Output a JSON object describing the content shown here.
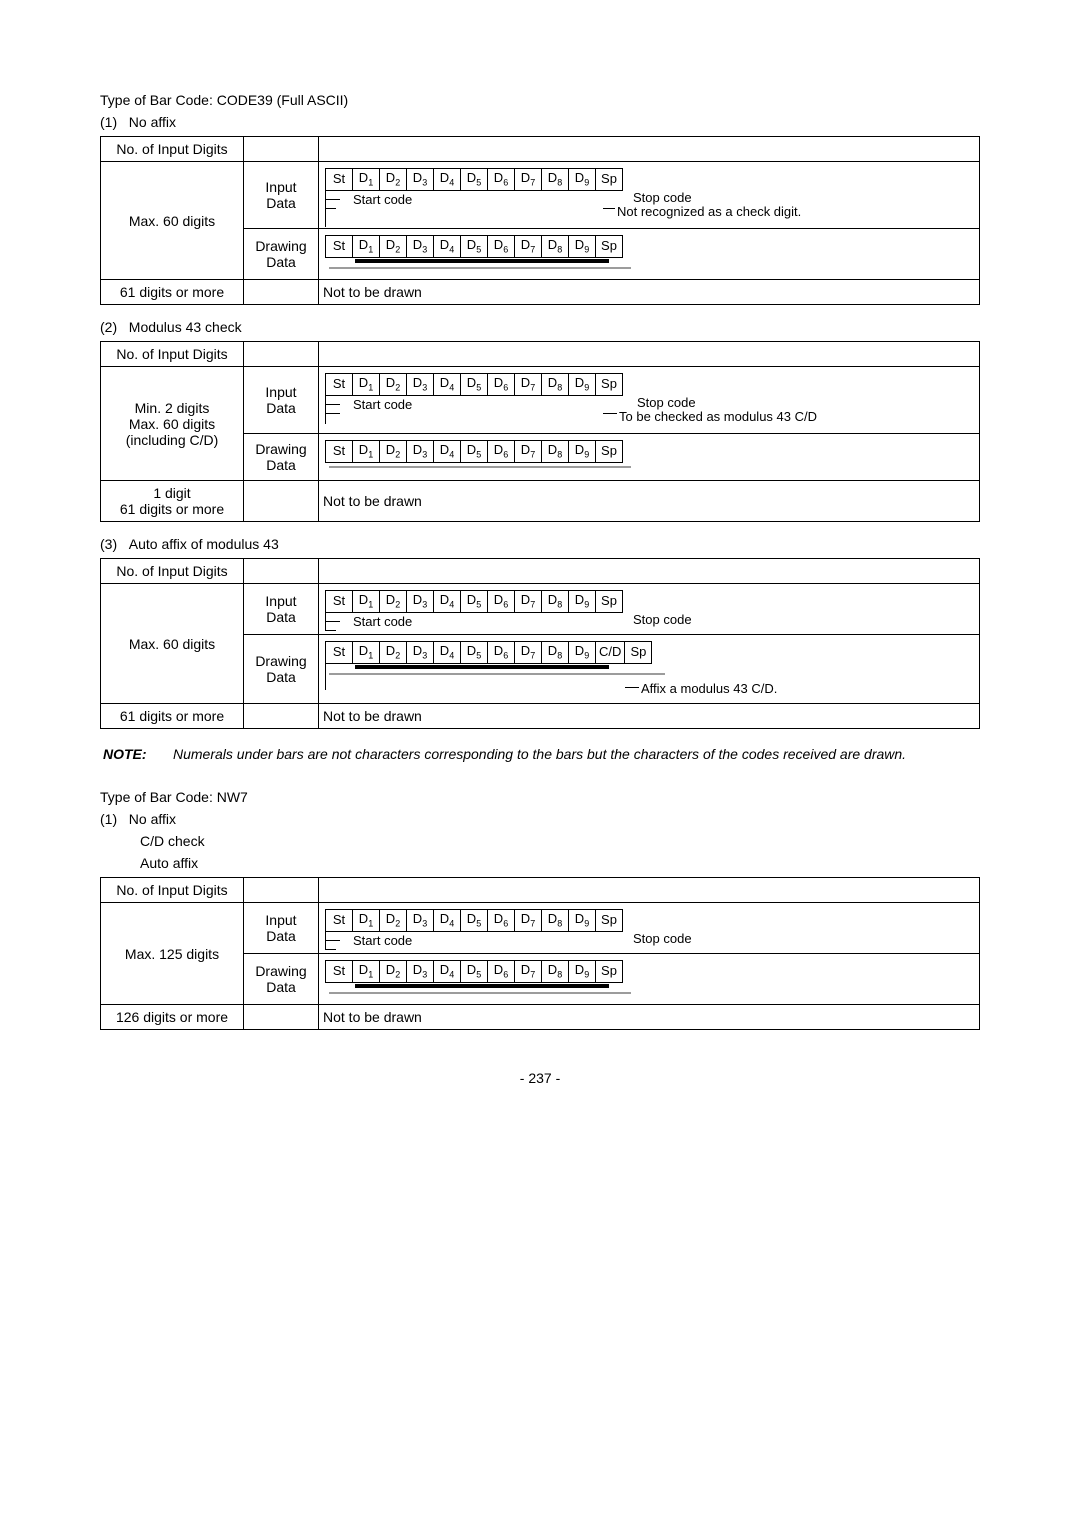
{
  "sec1": {
    "title": "Type of Bar Code: CODE39 (Full ASCII)",
    "sub1": "No affix",
    "sub2": "Modulus 43 check",
    "sub3": "Auto affix of modulus 43"
  },
  "col_hdr": "No. of Input Digits",
  "row_input": "Input Data",
  "row_draw": "Drawing Data",
  "max60": "Max. 60 digits",
  "over60": "61 digits or more",
  "min2a": "Min. 2 digits",
  "min2b": "Max. 60 digits",
  "min2c": "(including C/D)",
  "one_digit": "1 digit",
  "not_drawn": "Not to be drawn",
  "start_code": "Start code",
  "stop_code": "Stop code",
  "no_check": "Not recognized as a check digit.",
  "to_check": "To be checked as modulus 43 C/D",
  "affix43": "Affix a modulus 43 C/D.",
  "boxes_std": [
    "St",
    "D|1",
    "D|2",
    "D|3",
    "D|4",
    "D|5",
    "D|6",
    "D|7",
    "D|8",
    "D|9",
    "Sp"
  ],
  "boxes_cd": [
    "St",
    "D|1",
    "D|2",
    "D|3",
    "D|4",
    "D|5",
    "D|6",
    "D|7",
    "D|8",
    "D|9",
    "C/D",
    "Sp"
  ],
  "note_label": "NOTE:",
  "note_text": "Numerals under bars are not characters corresponding to the bars but the characters of the codes received are drawn.",
  "sec2": {
    "title": "Type of Bar Code: NW7",
    "a": "No affix",
    "b": "C/D check",
    "c": "Auto affix"
  },
  "max125": "Max. 125 digits",
  "over125": "126 digits or more",
  "page_no": "- 237 -"
}
